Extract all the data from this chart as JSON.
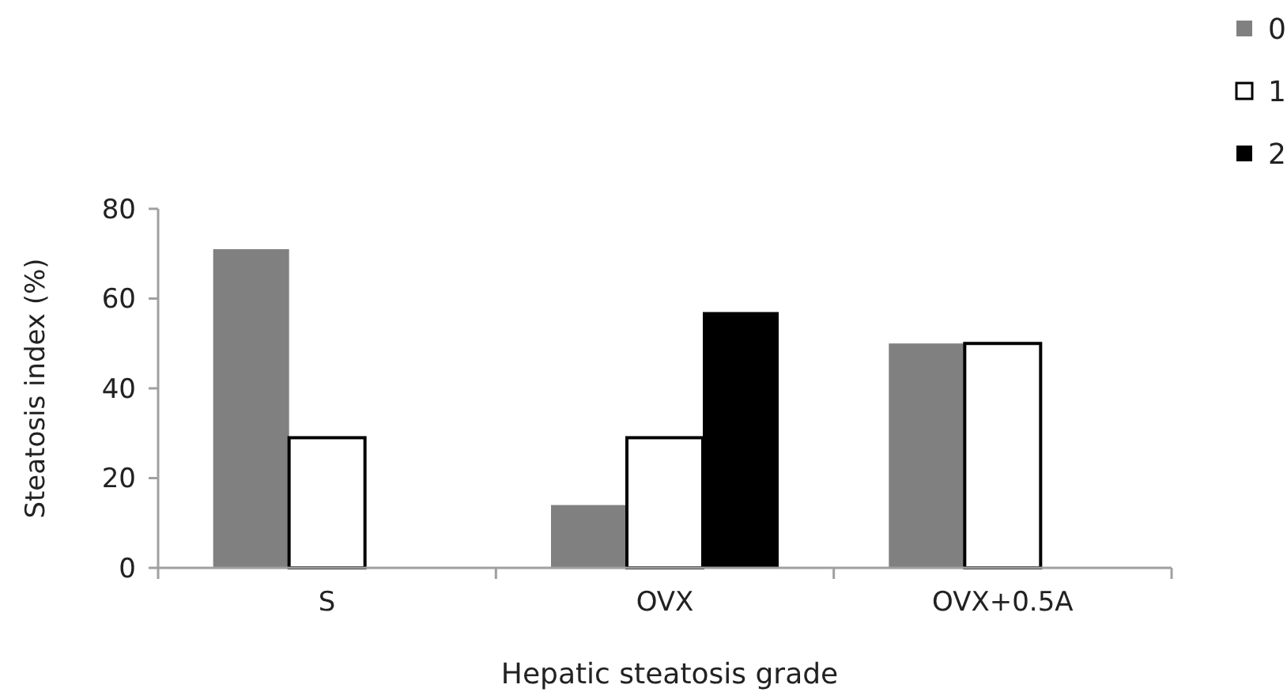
{
  "chart_data": {
    "type": "bar",
    "xlabel": "Hepatic steatosis grade",
    "ylabel": "Steatosis index (%)",
    "categories": [
      "S",
      "OVX",
      "OVX+0.5A"
    ],
    "series": [
      {
        "name": "0",
        "color": "#808080",
        "values": [
          71,
          14,
          50
        ]
      },
      {
        "name": "1",
        "color": "#ffffff",
        "values": [
          29,
          29,
          50
        ]
      },
      {
        "name": "2",
        "color": "#000000",
        "values": [
          null,
          57,
          null
        ]
      }
    ],
    "ylim": [
      0,
      80
    ],
    "yticks": [
      0,
      20,
      40,
      60,
      80
    ],
    "grid": false,
    "legend": "top right"
  }
}
